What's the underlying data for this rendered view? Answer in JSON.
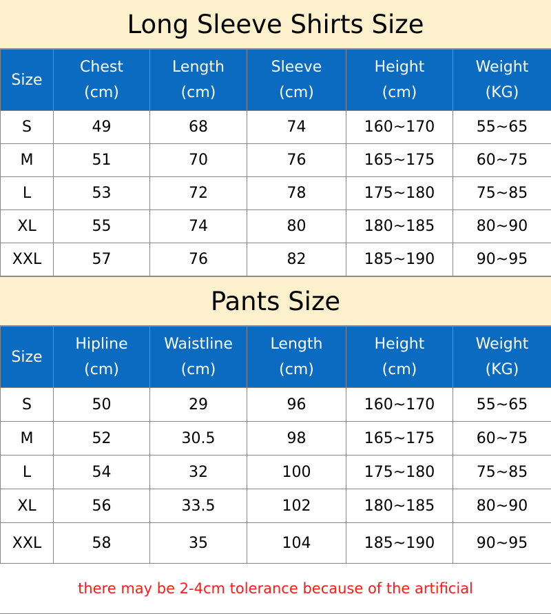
{
  "shirts": {
    "title": "Long Sleeve Shirts Size",
    "headers": [
      [
        "Size",
        ""
      ],
      [
        "Chest",
        "(cm)"
      ],
      [
        "Length",
        "(cm)"
      ],
      [
        "Sleeve",
        "(cm)"
      ],
      [
        "Height",
        "(cm)"
      ],
      [
        "Weight",
        "(KG)"
      ]
    ],
    "rows": [
      [
        "S",
        "49",
        "68",
        "74",
        "160~170",
        "55~65"
      ],
      [
        "M",
        "51",
        "70",
        "76",
        "165~175",
        "60~75"
      ],
      [
        "L",
        "53",
        "72",
        "78",
        "175~180",
        "75~85"
      ],
      [
        "XL",
        "55",
        "74",
        "80",
        "180~185",
        "80~90"
      ],
      [
        "XXL",
        "57",
        "76",
        "82",
        "185~190",
        "90~95"
      ]
    ]
  },
  "pants": {
    "title": "Pants Size",
    "headers": [
      [
        "Size",
        ""
      ],
      [
        "Hipline",
        "(cm)"
      ],
      [
        "Waistline",
        "(cm)"
      ],
      [
        "Length",
        "(cm)"
      ],
      [
        "Height",
        "(cm)"
      ],
      [
        "Weight",
        "(KG)"
      ]
    ],
    "rows": [
      [
        "S",
        "50",
        "29",
        "96",
        "160~170",
        "55~65"
      ],
      [
        "M",
        "52",
        "30.5",
        "98",
        "165~175",
        "60~75"
      ],
      [
        "L",
        "54",
        "32",
        "100",
        "175~180",
        "75~85"
      ],
      [
        "XL",
        "56",
        "33.5",
        "102",
        "180~185",
        "80~90"
      ],
      [
        "XXL",
        "58",
        "35",
        "104",
        "185~190",
        "90~95"
      ]
    ]
  },
  "footer": "there may be 2-4cm tolerance because of the artificial",
  "colors": {
    "title_bg": "#FDF0CC",
    "header_bg": "#0A6BC1",
    "note": "#FF1A1A"
  }
}
